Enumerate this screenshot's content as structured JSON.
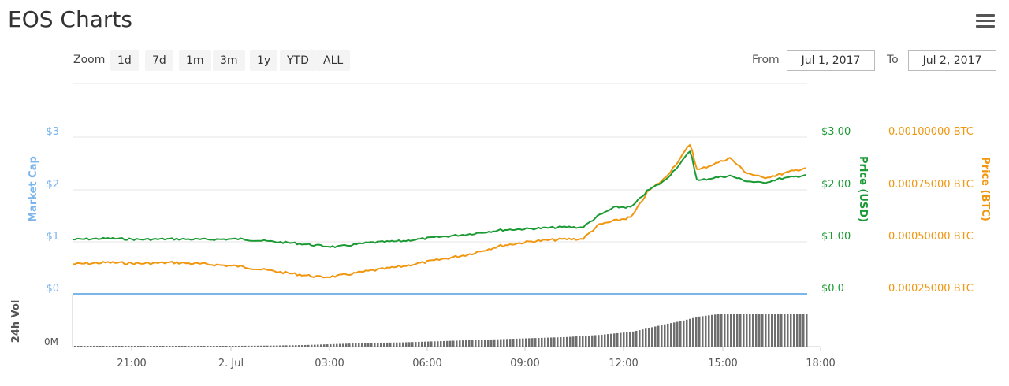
{
  "page": {
    "title": "EOS Charts"
  },
  "zoom": {
    "label": "Zoom",
    "buttons": [
      "1d",
      "7d",
      "1m",
      "3m",
      "1y",
      "YTD",
      "ALL"
    ]
  },
  "range": {
    "from_label": "From",
    "from_value": "Jul 1, 2017",
    "to_label": "To",
    "to_value": "Jul 2, 2017"
  },
  "colors": {
    "market_cap": "#7cb5ec",
    "usd": "#1b9a34",
    "btc": "#f0960f",
    "volume": "#6e6e6e",
    "grid": "#e6e6e6"
  },
  "chart_data": {
    "type": "line",
    "title": "",
    "x_ticks": [
      "21:00",
      "2. Jul",
      "03:00",
      "06:00",
      "09:00",
      "12:00",
      "15:00",
      "18:00"
    ],
    "x_range_hours": [
      -5.08,
      17.75
    ],
    "axes": {
      "market_cap": {
        "label": "Market Cap",
        "ticks": [
          "$0",
          "$1",
          "$2",
          "$3"
        ],
        "range": [
          0,
          3
        ]
      },
      "price_usd": {
        "label": "Price (USD)",
        "ticks": [
          "$0.0",
          "$1.00",
          "$2.00",
          "$3.00"
        ],
        "range": [
          0,
          3
        ]
      },
      "price_btc": {
        "label": "Price (BTC)",
        "ticks": [
          "0.00025000 BTC",
          "0.00050000 BTC",
          "0.00075000 BTC",
          "0.00100000 BTC"
        ],
        "range": [
          0.00025,
          0.001
        ]
      },
      "volume": {
        "label": "24h Vol",
        "ticks": [
          "0M"
        ]
      }
    },
    "series": [
      {
        "name": "Price (USD)",
        "axis": "price_usd",
        "x": [
          -5.08,
          -4,
          -3,
          -2,
          -1,
          0,
          1,
          1.7,
          2.5,
          3,
          4,
          5,
          6,
          7,
          8,
          9,
          10,
          10.5,
          11,
          11.5,
          12,
          12.5,
          13,
          13.5,
          13.8,
          14,
          14.5,
          15,
          15.5,
          16,
          16.5,
          17,
          17.5,
          17.75
        ],
        "y": [
          1.04,
          1.06,
          1.04,
          1.05,
          1.04,
          1.05,
          1.0,
          0.97,
          0.92,
          0.9,
          0.98,
          1.01,
          1.08,
          1.14,
          1.22,
          1.25,
          1.28,
          1.27,
          1.5,
          1.66,
          1.66,
          1.98,
          2.16,
          2.5,
          2.75,
          2.16,
          2.22,
          2.26,
          2.16,
          2.12,
          2.2,
          2.24,
          2.3,
          2.29
        ]
      },
      {
        "name": "Price (BTC)",
        "axis": "price_btc",
        "x": [
          -5.08,
          -4,
          -3,
          -2,
          -1,
          0,
          1,
          1.7,
          2.5,
          3,
          4,
          5,
          6,
          7,
          8,
          9,
          10,
          10.5,
          11,
          11.5,
          12,
          12.5,
          13,
          13.5,
          13.8,
          14,
          14.5,
          15,
          15.5,
          16,
          16.5,
          17,
          17.5,
          17.75
        ],
        "y": [
          0.000392,
          0.0004,
          0.000395,
          0.0004,
          0.000392,
          0.000382,
          0.00036,
          0.000345,
          0.00033,
          0.000335,
          0.00036,
          0.000382,
          0.00041,
          0.000438,
          0.00048,
          0.000502,
          0.000512,
          0.000512,
          0.00058,
          0.0006,
          0.000617,
          0.00074,
          0.0008,
          0.0009,
          0.00097,
          0.00084,
          0.00087,
          0.0009,
          0.00083,
          0.000805,
          0.00082,
          0.00084,
          0.00086,
          0.000855
        ]
      },
      {
        "name": "Market Cap",
        "axis": "market_cap",
        "x": [
          -5.08,
          17.75
        ],
        "y": [
          0,
          0
        ]
      },
      {
        "name": "24h Vol",
        "axis": "volume",
        "x": [
          -5.08,
          -3,
          -1,
          1,
          2,
          3,
          4,
          5,
          6,
          7,
          8,
          9,
          10,
          10.5,
          11,
          11.5,
          12,
          12.5,
          13,
          13.5,
          14,
          14.5,
          15,
          15.5,
          16,
          17,
          17.75
        ],
        "y": [
          1,
          1,
          1,
          2,
          3,
          5,
          7,
          8,
          10,
          12,
          14,
          16,
          18,
          20,
          22,
          25,
          28,
          35,
          42,
          48,
          56,
          60,
          62,
          62,
          61,
          62,
          62
        ]
      }
    ]
  }
}
